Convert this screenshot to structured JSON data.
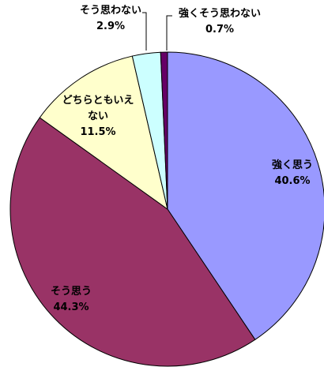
{
  "chart_data": {
    "type": "pie",
    "categories": [
      "強く思う",
      "そう思う",
      "どちらともいえない",
      "そう思わない",
      "強くそう思わない"
    ],
    "values": [
      40.6,
      44.3,
      11.5,
      2.9,
      0.7
    ],
    "value_labels": [
      "40.6%",
      "44.3%",
      "11.5%",
      "2.9%",
      "0.7%"
    ],
    "colors": [
      "#9999ff",
      "#993366",
      "#ffffcc",
      "#ccffff",
      "#660066"
    ]
  }
}
